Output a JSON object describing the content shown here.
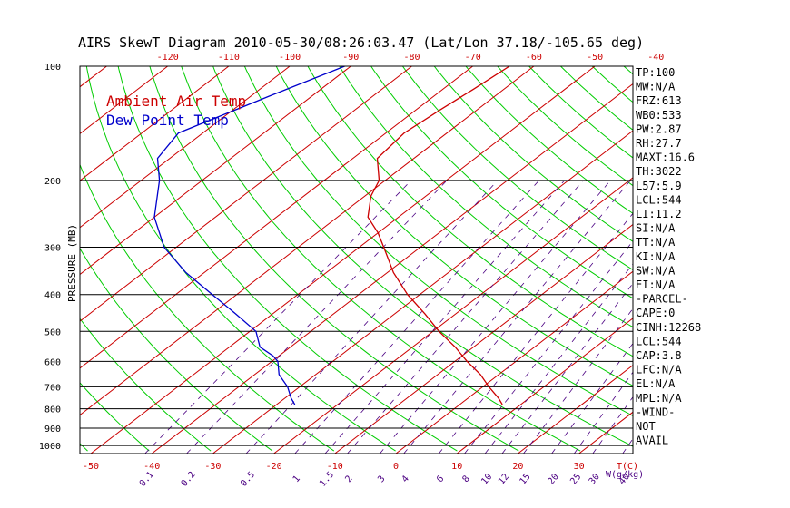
{
  "chart_data": {
    "type": "line",
    "title": "AIRS SkewT Diagram 2010-05-30/08:26:03.47 (Lat/Lon 37.18/-105.65 deg)",
    "ylabel": "PRESSURE (MB)",
    "pressure_ticks": [
      100,
      200,
      300,
      400,
      500,
      600,
      700,
      800,
      900,
      1000
    ],
    "top_temp_ticks": [
      "-120",
      "-110",
      "-100",
      "-90",
      "-80",
      "-70",
      "-60",
      "-50",
      "-40"
    ],
    "bottom_temp_ticks": [
      "-50",
      "-40",
      "-30",
      "-20",
      "-10",
      "0",
      "10",
      "20",
      "30"
    ],
    "bottom_temp_unit": "T(C)",
    "mixing_ratio_ticks": [
      "0.1",
      "0.2",
      "0.5",
      "1",
      "1.5",
      "2",
      "3",
      "4",
      "6",
      "8",
      "10",
      "12",
      "15",
      "20",
      "25",
      "30",
      "40"
    ],
    "mixing_ratio_unit": "W(g/kg)",
    "ylim": [
      100,
      1050
    ],
    "y_scale": "log",
    "legend": [
      {
        "label": "Ambient Air Temp",
        "color": "#cc0000"
      },
      {
        "label": "Dew Point Temp",
        "color": "#0000cc"
      }
    ],
    "series": [
      {
        "name": "Ambient Air Temp",
        "color": "#cc0000",
        "points": [
          {
            "p": 100,
            "t": -64
          },
          {
            "p": 115,
            "t": -65
          },
          {
            "p": 130,
            "t": -66
          },
          {
            "p": 150,
            "t": -67
          },
          {
            "p": 175,
            "t": -66
          },
          {
            "p": 200,
            "t": -61
          },
          {
            "p": 220,
            "t": -59
          },
          {
            "p": 250,
            "t": -55
          },
          {
            "p": 275,
            "t": -50
          },
          {
            "p": 300,
            "t": -46
          },
          {
            "p": 350,
            "t": -39
          },
          {
            "p": 400,
            "t": -32
          },
          {
            "p": 450,
            "t": -25
          },
          {
            "p": 500,
            "t": -19
          },
          {
            "p": 550,
            "t": -13
          },
          {
            "p": 600,
            "t": -8
          },
          {
            "p": 650,
            "t": -3
          },
          {
            "p": 700,
            "t": 1
          },
          {
            "p": 750,
            "t": 5
          },
          {
            "p": 780,
            "t": 7
          }
        ]
      },
      {
        "name": "Dew Point Temp",
        "color": "#0000cc",
        "points": [
          {
            "p": 100,
            "t": -91
          },
          {
            "p": 120,
            "t": -97
          },
          {
            "p": 150,
            "t": -104
          },
          {
            "p": 175,
            "t": -102
          },
          {
            "p": 200,
            "t": -97
          },
          {
            "p": 250,
            "t": -90
          },
          {
            "p": 300,
            "t": -82
          },
          {
            "p": 350,
            "t": -73
          },
          {
            "p": 400,
            "t": -64
          },
          {
            "p": 450,
            "t": -56
          },
          {
            "p": 500,
            "t": -49
          },
          {
            "p": 550,
            "t": -45
          },
          {
            "p": 580,
            "t": -41
          },
          {
            "p": 600,
            "t": -39
          },
          {
            "p": 650,
            "t": -36
          },
          {
            "p": 700,
            "t": -32
          },
          {
            "p": 750,
            "t": -29
          },
          {
            "p": 780,
            "t": -27
          }
        ]
      }
    ],
    "grid": true,
    "legend_placement": "top-left"
  },
  "indices": [
    "TP:100",
    "MW:N/A",
    "FRZ:613",
    "WB0:533",
    "PW:2.87",
    "RH:27.7",
    "MAXT:16.6",
    "TH:3022",
    "L57:5.9",
    "LCL:544",
    "LI:11.2",
    "SI:N/A",
    "TT:N/A",
    "KI:N/A",
    "SW:N/A",
    "EI:N/A",
    "-PARCEL-",
    "CAPE:0",
    "CINH:12268",
    "LCL:544",
    "CAP:3.8",
    "LFC:N/A",
    "EL:N/A",
    "MPL:N/A",
    "-WIND-",
    "NOT",
    "AVAIL"
  ],
  "colors": {
    "isotherm": "#cc0000",
    "adiabat": "#00cc00",
    "mixing_ratio": "#4b0082",
    "ambient": "#cc0000",
    "dewpoint": "#0000cc"
  }
}
